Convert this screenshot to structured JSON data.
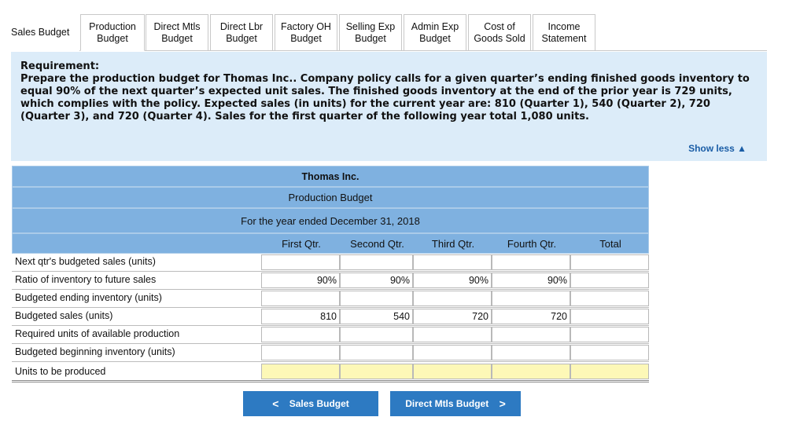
{
  "tabs": [
    {
      "label": "Sales Budget"
    },
    {
      "label": "Production\nBudget"
    },
    {
      "label": "Direct Mtls\nBudget"
    },
    {
      "label": "Direct Lbr\nBudget"
    },
    {
      "label": "Factory OH\nBudget"
    },
    {
      "label": "Selling Exp\nBudget"
    },
    {
      "label": "Admin Exp\nBudget"
    },
    {
      "label": "Cost of\nGoods Sold"
    },
    {
      "label": "Income\nStatement"
    }
  ],
  "requirement": {
    "title": "Requirement:",
    "text": "Prepare the production budget for Thomas Inc.. Company policy calls for a given quarter’s ending finished goods inventory to equal 90% of the next quarter’s expected unit sales. The finished goods inventory at the end of the prior year is 729 units, which complies with the policy. Expected sales (in units) for the current year are: 810 (Quarter 1), 540 (Quarter 2), 720 (Quarter 3), and 720 (Quarter 4). Sales for the first quarter of the following year total 1,080 units.",
    "show_less": "Show less"
  },
  "budget": {
    "company": "Thomas Inc.",
    "title": "Production Budget",
    "period": "For the year ended December 31, 2018",
    "columns": [
      "First Qtr.",
      "Second Qtr.",
      "Third Qtr.",
      "Fourth Qtr.",
      "Total"
    ],
    "rows": [
      {
        "label": "Next qtr's budgeted sales (units)",
        "values": [
          "",
          "",
          "",
          "",
          ""
        ]
      },
      {
        "label": "Ratio of inventory to future sales",
        "values": [
          "90%",
          "90%",
          "90%",
          "90%",
          ""
        ]
      },
      {
        "label": "Budgeted ending inventory (units)",
        "values": [
          "",
          "",
          "",
          "",
          ""
        ]
      },
      {
        "label": "Budgeted sales (units)",
        "values": [
          "810",
          "540",
          "720",
          "720",
          ""
        ]
      },
      {
        "label": "Required units of available production",
        "values": [
          "",
          "",
          "",
          "",
          ""
        ]
      },
      {
        "label": "Budgeted beginning inventory (units)",
        "values": [
          "",
          "",
          "",
          "",
          ""
        ]
      },
      {
        "label": "Units to be produced",
        "values": [
          "",
          "",
          "",
          "",
          ""
        ]
      }
    ]
  },
  "nav": {
    "prev_label": "Sales Budget",
    "next_label": "Direct Mtls Budget",
    "prev_icon": "chevron-left-icon",
    "next_icon": "chevron-right-icon"
  },
  "colors": {
    "accent": "#2d7ac2",
    "header_blue": "#7fb1e0",
    "panel": "#dcecf9",
    "input_yellow": "#fdf8b7"
  }
}
